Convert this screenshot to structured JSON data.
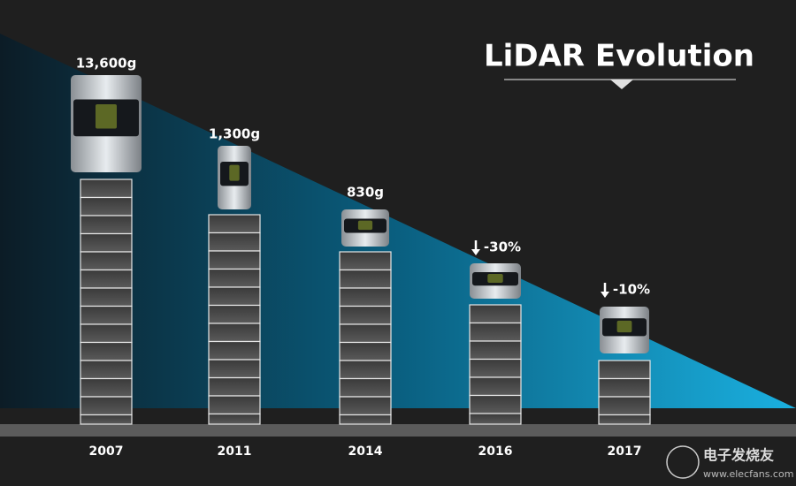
{
  "title": "LiDAR Evolution",
  "items": [
    {
      "year": "2007",
      "label": "13,600g"
    },
    {
      "year": "2011",
      "label": "1,300g"
    },
    {
      "year": "2014",
      "label": "830g"
    },
    {
      "year": "2016",
      "label": "-30%"
    },
    {
      "year": "2017",
      "label": "-10%"
    }
  ],
  "watermark": {
    "name": "电子发烧友",
    "url": "www.elecfans.com"
  }
}
